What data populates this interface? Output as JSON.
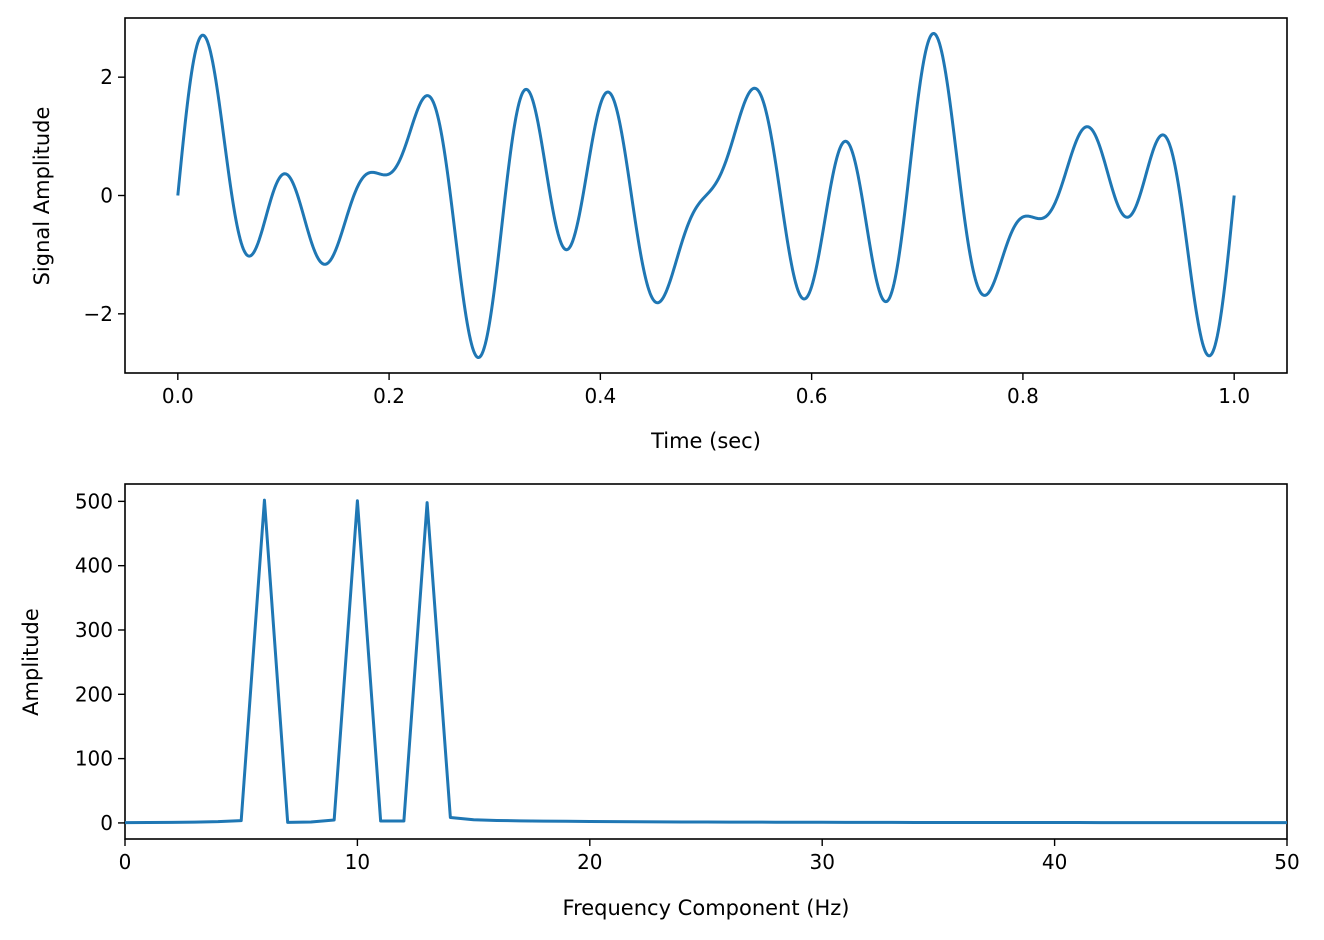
{
  "chart_data": [
    {
      "type": "line",
      "xlabel": "Time (sec)",
      "ylabel": "Signal Amplitude",
      "xlim": [
        -0.05,
        1.05
      ],
      "ylim": [
        -3.0,
        3.0
      ],
      "x_ticks": [
        0.0,
        0.2,
        0.4,
        0.6,
        0.8,
        1.0
      ],
      "x_tick_labels": [
        "0.0",
        "0.2",
        "0.4",
        "0.6",
        "0.8",
        "1.0"
      ],
      "y_ticks": [
        -2,
        0,
        2
      ],
      "y_tick_labels": [
        "−2",
        "0",
        "2"
      ],
      "grid": false,
      "color": "#1f77b4",
      "series": [
        {
          "function": "sum of three unit-amplitude sines",
          "components": [
            {
              "frequency_hz": 6,
              "amplitude": 1
            },
            {
              "frequency_hz": 10,
              "amplitude": 1
            },
            {
              "frequency_hz": 13,
              "amplitude": 1
            }
          ],
          "x_range": [
            0,
            1
          ]
        }
      ]
    },
    {
      "type": "line",
      "xlabel": "Frequency Component (Hz)",
      "ylabel": "Amplitude",
      "xlim": [
        0,
        50
      ],
      "ylim": [
        -25,
        527
      ],
      "x_ticks": [
        0,
        10,
        20,
        30,
        40,
        50
      ],
      "x_tick_labels": [
        "0",
        "10",
        "20",
        "30",
        "40",
        "50"
      ],
      "y_ticks": [
        0,
        100,
        200,
        300,
        400,
        500
      ],
      "y_tick_labels": [
        "0",
        "100",
        "200",
        "300",
        "400",
        "500"
      ],
      "grid": false,
      "color": "#1f77b4",
      "series": [
        {
          "x": [
            0,
            1,
            2,
            3,
            4,
            5,
            6,
            7,
            8,
            9,
            10,
            11,
            12,
            13,
            14,
            15,
            16,
            17,
            18,
            19,
            20,
            21,
            22,
            23,
            24,
            25,
            26,
            27,
            28,
            29,
            30,
            31,
            32,
            33,
            34,
            35,
            36,
            37,
            38,
            39,
            40,
            41,
            42,
            43,
            44,
            45,
            46,
            47,
            48,
            49,
            50
          ],
          "values": [
            0.5,
            0.6,
            0.9,
            1.3,
            2.0,
            3.5,
            502,
            0.8,
            1.5,
            4.5,
            501,
            3.0,
            3.0,
            498,
            8.5,
            5.0,
            3.8,
            3.2,
            2.8,
            2.5,
            2.2,
            2.0,
            1.8,
            1.6,
            1.5,
            1.4,
            1.3,
            1.2,
            1.1,
            1.0,
            0.95,
            0.9,
            0.85,
            0.8,
            0.75,
            0.7,
            0.68,
            0.65,
            0.62,
            0.6,
            0.58,
            0.56,
            0.54,
            0.52,
            0.5,
            0.49,
            0.48,
            0.47,
            0.46,
            0.45,
            0.45
          ]
        }
      ]
    }
  ]
}
